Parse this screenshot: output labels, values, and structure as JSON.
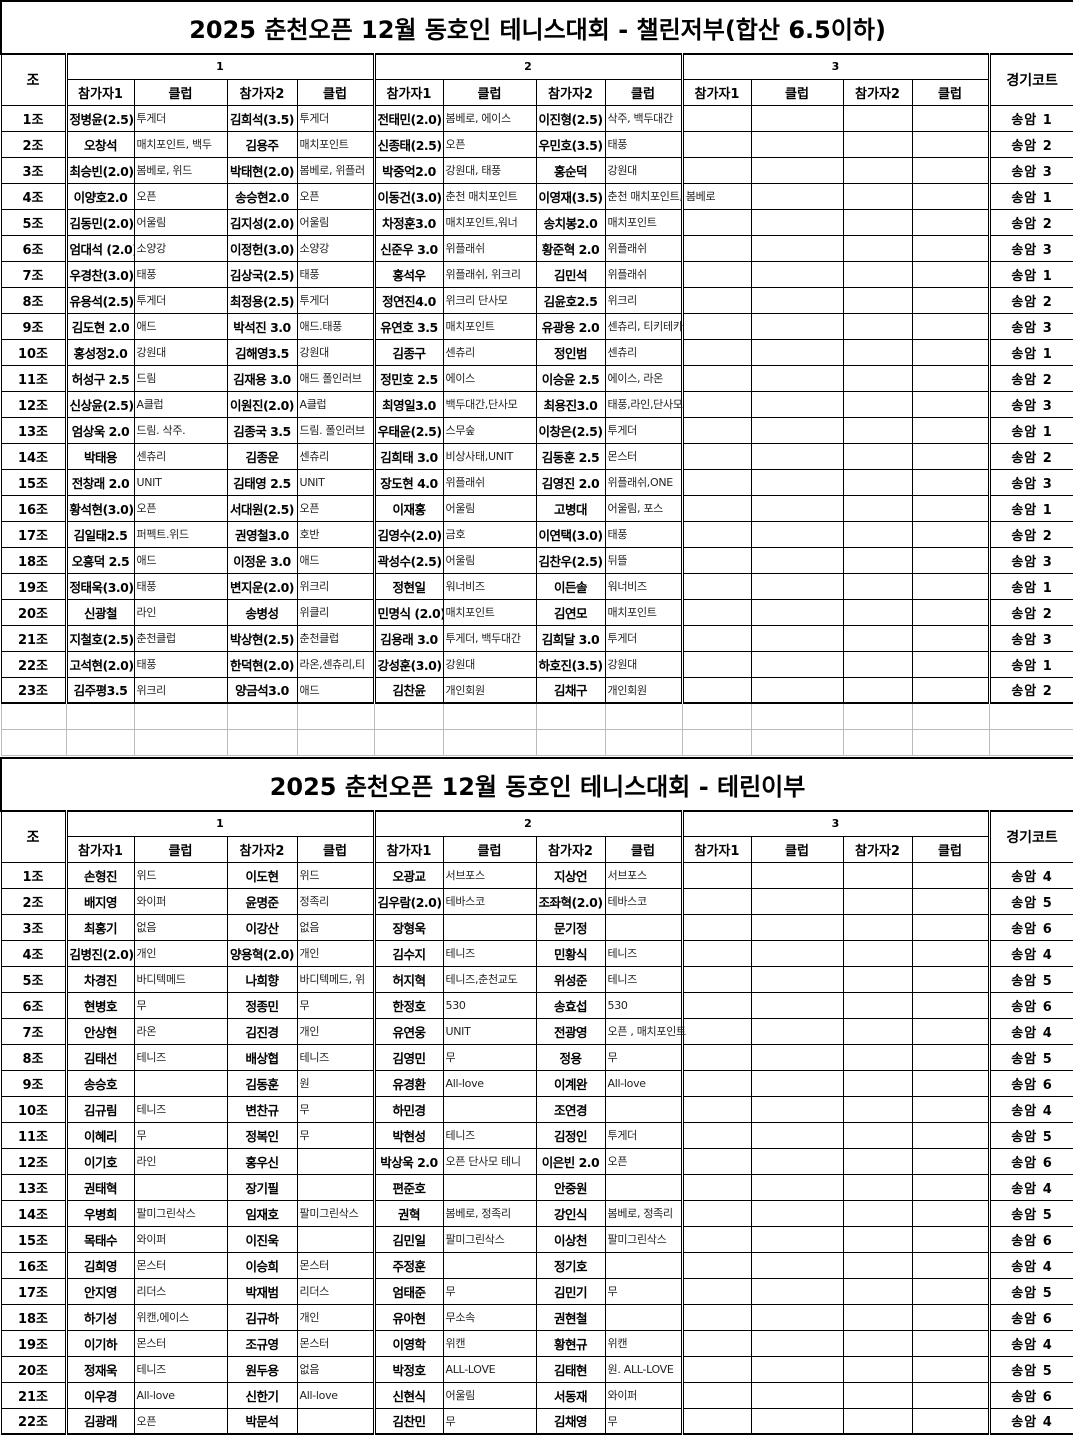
{
  "sections": [
    {
      "title": "2025 춘천오픈 12월 동호인 테니스대회 - 챌린저부(합산 6.5이하)",
      "header": {
        "group_col": "조",
        "groups": [
          "1",
          "2",
          "3"
        ],
        "court_col": "경기코트",
        "sub": [
          "참가자1",
          "클럽",
          "참가자2",
          "클럽"
        ]
      },
      "rows": [
        [
          "1조",
          "정병윤(2.5)",
          "투게더",
          "김희석(3.5)",
          "투게더",
          "전태민(2.0)",
          "봄베로, 에이스",
          "이진형(2.5)",
          "삭주, 백두대간",
          "송암 1"
        ],
        [
          "2조",
          "오창석",
          "매치포인트, 백두",
          "김용주",
          "매치포인트",
          "신종태(2.5)",
          "오픈",
          "우민호(3.5)",
          "태풍",
          "송암 2"
        ],
        [
          "3조",
          "최승빈(2.0)",
          "봄베로, 위드",
          "박태현(2.0)",
          "봄베로, 위플러",
          "박중억2.0",
          "강원대, 태풍",
          "홍순덕",
          "강원대",
          "송암 3"
        ],
        [
          "4조",
          "이양호2.0",
          "오픈",
          "송승현2.0",
          "오픈",
          "이동건(3.0)",
          "춘천 매치포인트",
          "이영재(3.5)",
          "춘천 매치포인트, 봄베로",
          "송암 1"
        ],
        [
          "5조",
          "김동민(2.0)",
          "어울림",
          "김지성(2.0)",
          "어울림",
          "차정훈3.0",
          "매치포인트,워너",
          "송치봉2.0",
          "매치포인트",
          "송암 2"
        ],
        [
          "6조",
          "엄대석 (2.0)",
          "소양강",
          "이정헌(3.0)",
          "소양강",
          "신준우 3.0",
          "위플래쉬",
          "황준혁 2.0",
          "위플래쉬",
          "송암 3"
        ],
        [
          "7조",
          "우경찬(3.0)",
          "태풍",
          "김상국(2.5)",
          "태풍",
          "홍석우",
          "위플래쉬, 위크리",
          "김민석",
          "위플래쉬",
          "송암 1"
        ],
        [
          "8조",
          "유용석(2.5)",
          "투게더",
          "최정용(2.5)",
          "투게더",
          "정연진4.0",
          "위크리 단사모",
          "김윤호2.5",
          "위크리",
          "송암 2"
        ],
        [
          "9조",
          "김도현 2.0",
          "애드",
          "박석진 3.0",
          "애드.태풍",
          "유연호 3.5",
          "매치포인트",
          "유광용 2.0",
          "센츄리, 티키테카",
          "송암 3"
        ],
        [
          "10조",
          "홍성정2.0",
          "강원대",
          "김해영3.5",
          "강원대",
          "김종구",
          "센츄리",
          "정인범",
          "센츄리",
          "송암 1"
        ],
        [
          "11조",
          "허성구 2.5",
          "드림",
          "김재용 3.0",
          "애드 폴인러브",
          "정민호 2.5",
          "에이스",
          "이승윤 2.5",
          "에이스, 라온",
          "송암 2"
        ],
        [
          "12조",
          "신상윤(2.5)",
          "A클럽",
          "이원진(2.0)",
          "A클럽",
          "최영일3.0",
          "백두대간,단사모",
          "최용진3.0",
          "태풍,라인,단사모",
          "송암 3"
        ],
        [
          "13조",
          "엄상욱 2.0",
          "드림. 삭주.",
          "김종국 3.5",
          "드림. 폴인러브",
          "우태윤(2.5)",
          "스무숲",
          "이창은(2.5)",
          "투게더",
          "송암 1"
        ],
        [
          "14조",
          "박태용",
          "센츄리",
          "김종운",
          "센츄리",
          "김희태 3.0",
          "비상사태,UNIT",
          "김동훈 2.5",
          "몬스터",
          "송암 2"
        ],
        [
          "15조",
          "전창래 2.0",
          "UNIT",
          "김태영 2.5",
          "UNIT",
          "장도현 4.0",
          "위플래쉬",
          "김영진 2.0",
          "위플래쉬,ONE",
          "송암 3"
        ],
        [
          "16조",
          "황석현(3.0)",
          "오픈",
          "서대원(2.5)",
          "오픈",
          "이재홍",
          "어울림",
          "고병대",
          "어울림, 포스",
          "송암 1"
        ],
        [
          "17조",
          "김일태2.5",
          "퍼펙트.위드",
          "권영철3.0",
          "호반",
          "김영수(2.0)",
          "금호",
          "이연택(3.0)",
          "태풍",
          "송암 2"
        ],
        [
          "18조",
          "오흥덕 2.5",
          "애드",
          "이정운 3.0",
          "애드",
          "곽성수(2.5)",
          "어울림",
          "김찬우(2.5)",
          "뒤뜰",
          "송암 3"
        ],
        [
          "19조",
          "정태욱(3.0)",
          "태풍",
          "변지운(2.0)",
          "위크리",
          "정현일",
          "워너비즈",
          "이든솔",
          "워너비즈",
          "송암 1"
        ],
        [
          "20조",
          "신광철",
          "라인",
          "송병성",
          "위클리",
          "민명식 (2.0)",
          "매치포인트",
          "김연모",
          "매치포인트",
          "송암 2"
        ],
        [
          "21조",
          "지철호(2.5)",
          "춘천클럽",
          "박상현(2.5)",
          "춘천클럽",
          "김용래 3.0",
          "투게더, 백두대간",
          "김희달 3.0",
          "투게더",
          "송암 3"
        ],
        [
          "22조",
          "고석현(2.0)",
          "태풍",
          "한덕현(2.0)",
          "라온,센츄리,티",
          "강성훈(3.0)",
          "강원대",
          "하호진(3.5)",
          "강원대",
          "송암 1"
        ],
        [
          "23조",
          "김주평3.5",
          "위크리",
          "양금석3.0",
          "애드",
          "김찬윤",
          "개인회원",
          "김채구",
          "개인회원",
          "송암 2"
        ]
      ]
    },
    {
      "title": "2025 춘천오픈 12월 동호인 테니스대회 - 테린이부",
      "header": {
        "group_col": "조",
        "groups": [
          "1",
          "2",
          "3"
        ],
        "court_col": "경기코트",
        "sub": [
          "참가자1",
          "클럽",
          "참가자2",
          "클럽"
        ]
      },
      "rows": [
        [
          "1조",
          "손형진",
          "위드",
          "이도현",
          "위드",
          "오광교",
          "서브포스",
          "지상언",
          "서브포스",
          "송암 4"
        ],
        [
          "2조",
          "배지영",
          "와이퍼",
          "윤명준",
          "정족리",
          "김우람(2.0)",
          "테바스코",
          "조좌혁(2.0)",
          "테바스코",
          "송암 5"
        ],
        [
          "3조",
          "최홍기",
          "없음",
          "이강산",
          "없음",
          "장형욱",
          "",
          "문기정",
          "",
          "송암 6"
        ],
        [
          "4조",
          "김병진(2.0)",
          "개인",
          "양용혁(2.0)",
          "개인",
          "김수지",
          "테니즈",
          "민황식",
          "테니즈",
          "송암 4"
        ],
        [
          "5조",
          "차경진",
          "바디텍메드",
          "나희향",
          "바디텍메드, 위",
          "허지혁",
          "테니즈,춘천교도",
          "위성준",
          "테니즈",
          "송암 5"
        ],
        [
          "6조",
          "현병호",
          "무",
          "정종민",
          "무",
          "한정호",
          "530",
          "송효섭",
          "530",
          "송암 6"
        ],
        [
          "7조",
          "안상현",
          "라온",
          "김진경",
          "개인",
          "유연웅",
          "UNIT",
          "전광영",
          "오픈 , 매치포인트",
          "송암 4"
        ],
        [
          "8조",
          "김태선",
          "테니즈",
          "배상협",
          "테니즈",
          "김영민",
          "무",
          "정용",
          "무",
          "송암 5"
        ],
        [
          "9조",
          "송승호",
          "",
          "김동훈",
          "원",
          "유경환",
          "All-love",
          "이계완",
          "All-love",
          "송암 6"
        ],
        [
          "10조",
          "김규림",
          "테니즈",
          "변찬규",
          "무",
          "하민경",
          "",
          "조연경",
          "",
          "송암 4"
        ],
        [
          "11조",
          "이혜리",
          "무",
          "정복인",
          "무",
          "박현성",
          "테니즈",
          "김정인",
          "투게더",
          "송암 5"
        ],
        [
          "12조",
          "이기호",
          "라인",
          "홍우신",
          "",
          "박상욱 2.0",
          "오픈 단사모 테니",
          "이은빈 2.0",
          "오픈",
          "송암 6"
        ],
        [
          "13조",
          "권태혁",
          "",
          "장기필",
          "",
          "편준호",
          "",
          "안중원",
          "",
          "송암 4"
        ],
        [
          "14조",
          "우병희",
          "팔미그린삭스",
          "임재호",
          "팔미그린삭스",
          "권혁",
          "봄베로, 정족리",
          "강인식",
          "봄베로, 정족리",
          "송암 5"
        ],
        [
          "15조",
          "목태수",
          "와이퍼",
          "이진욱",
          "",
          "김민일",
          "팔미그린삭스",
          "이상천",
          "팔미그린삭스",
          "송암 6"
        ],
        [
          "16조",
          "김희영",
          "몬스터",
          "이승희",
          "몬스터",
          "주정훈",
          "",
          "정기호",
          "",
          "송암 4"
        ],
        [
          "17조",
          "안지영",
          "리더스",
          "박재범",
          "리더스",
          "엄태준",
          "무",
          "김민기",
          "무",
          "송암 5"
        ],
        [
          "18조",
          "하기성",
          "위캔,에이스",
          "김규하",
          "개인",
          "유아현",
          "무소속",
          "권현철",
          "",
          "송암 6"
        ],
        [
          "19조",
          "이기하",
          "몬스터",
          "조규영",
          "몬스터",
          "이영학",
          "위캔",
          "황현규",
          "위캔",
          "송암 4"
        ],
        [
          "20조",
          "정재욱",
          "테니즈",
          "원두용",
          "없음",
          "박정호",
          "ALL-LOVE",
          "김태현",
          "원. ALL-LOVE",
          "송암 5"
        ],
        [
          "21조",
          "이우경",
          "All-love",
          "신한기",
          "All-love",
          "신현식",
          "어울림",
          "서동재",
          "와이퍼",
          "송암 6"
        ],
        [
          "22조",
          "김광래",
          "오픈",
          "박문석",
          "",
          "김찬민",
          "무",
          "김채영",
          "무",
          "송암 4"
        ]
      ]
    }
  ]
}
